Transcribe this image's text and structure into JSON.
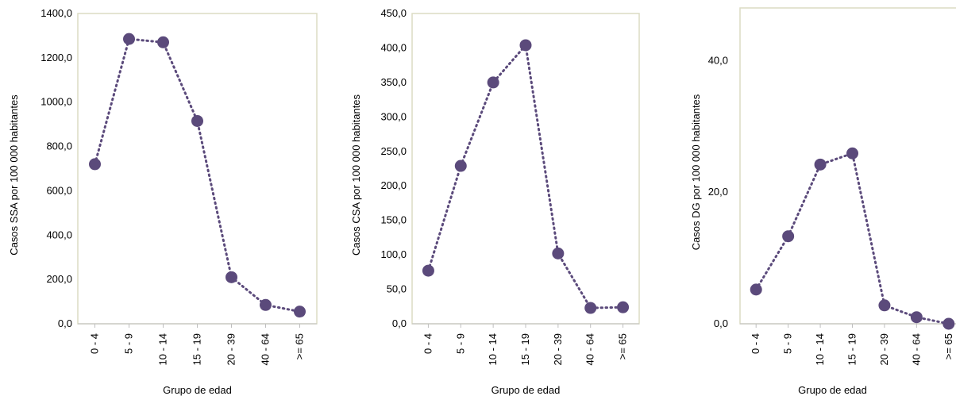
{
  "chart_data": [
    {
      "type": "line",
      "categories": [
        "0 - 4",
        "5 - 9",
        "10 - 14",
        "15 - 19",
        "20 - 39",
        "40 - 64",
        ">= 65"
      ],
      "values": [
        720,
        1285,
        1270,
        915,
        210,
        85,
        55
      ],
      "xlabel": "Grupo de edad",
      "ylabel": "Casos SSA por 100 000 habitantes",
      "ylim": [
        0,
        1400
      ],
      "yticks": [
        "0,0",
        "200,0",
        "400,0",
        "600,0",
        "800,0",
        "1000,0",
        "1200,0",
        "1400,0"
      ],
      "ytick_values": [
        0,
        200,
        400,
        600,
        800,
        1000,
        1200,
        1400
      ],
      "color": "#5b4a7b",
      "line_style": "dotted",
      "grid": false
    },
    {
      "type": "line",
      "categories": [
        "0 - 4",
        "5 - 9",
        "10 - 14",
        "15 - 19",
        "20 - 39",
        "40 - 64",
        ">= 65"
      ],
      "values": [
        77,
        229,
        350,
        404,
        102,
        23,
        24
      ],
      "xlabel": "Grupo de edad",
      "ylabel": "Casos CSA por 100 000 habitantes",
      "ylim": [
        0,
        450
      ],
      "yticks": [
        "0,0",
        "50,0",
        "100,0",
        "150,0",
        "200,0",
        "250,0",
        "300,0",
        "350,0",
        "400,0",
        "450,0"
      ],
      "ytick_values": [
        0,
        50,
        100,
        150,
        200,
        250,
        300,
        350,
        400,
        450
      ],
      "color": "#5b4a7b",
      "line_style": "dotted",
      "grid": false
    },
    {
      "type": "line",
      "categories": [
        "0 - 4",
        "5 - 9",
        "10 - 14",
        "15 - 19",
        "20 - 39",
        "40 - 64",
        ">= 65"
      ],
      "values": [
        5.2,
        13.3,
        24.2,
        25.9,
        2.8,
        1.0,
        0.0
      ],
      "xlabel": "Grupo de edad",
      "ylabel": "Casos DG por 100 000 habitantes",
      "ylim": [
        0,
        48
      ],
      "yticks": [
        "0,0",
        "20,0",
        "40,0"
      ],
      "ytick_values": [
        0,
        20,
        40
      ],
      "color": "#5b4a7b",
      "line_style": "dotted",
      "grid": false
    }
  ]
}
